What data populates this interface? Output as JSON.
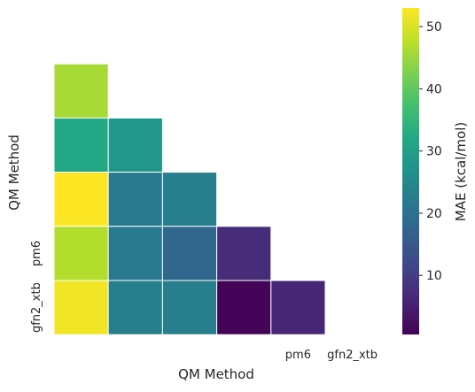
{
  "chart_data": {
    "type": "heatmap",
    "xlabel": "QM Method",
    "ylabel": "QM Method",
    "x_tick_labels": [
      "",
      "",
      "",
      "",
      "pm6",
      "gfn2_xtb"
    ],
    "y_tick_labels": [
      "",
      "",
      "",
      "",
      "pm6",
      "gfn2_xtb"
    ],
    "mask": "upper-triangle including diagonal",
    "rows": [
      [],
      [
        46
      ],
      [
        32,
        28
      ],
      [
        53,
        22,
        23
      ],
      [
        47,
        22,
        18,
        7
      ],
      [
        52,
        23,
        23,
        1,
        6
      ]
    ],
    "colorbar": {
      "label": "MAE (kcal/mol)",
      "vmin": 0.5,
      "vmax": 53,
      "ticks": [
        10,
        20,
        30,
        40,
        50
      ],
      "colormap": "viridis"
    }
  }
}
